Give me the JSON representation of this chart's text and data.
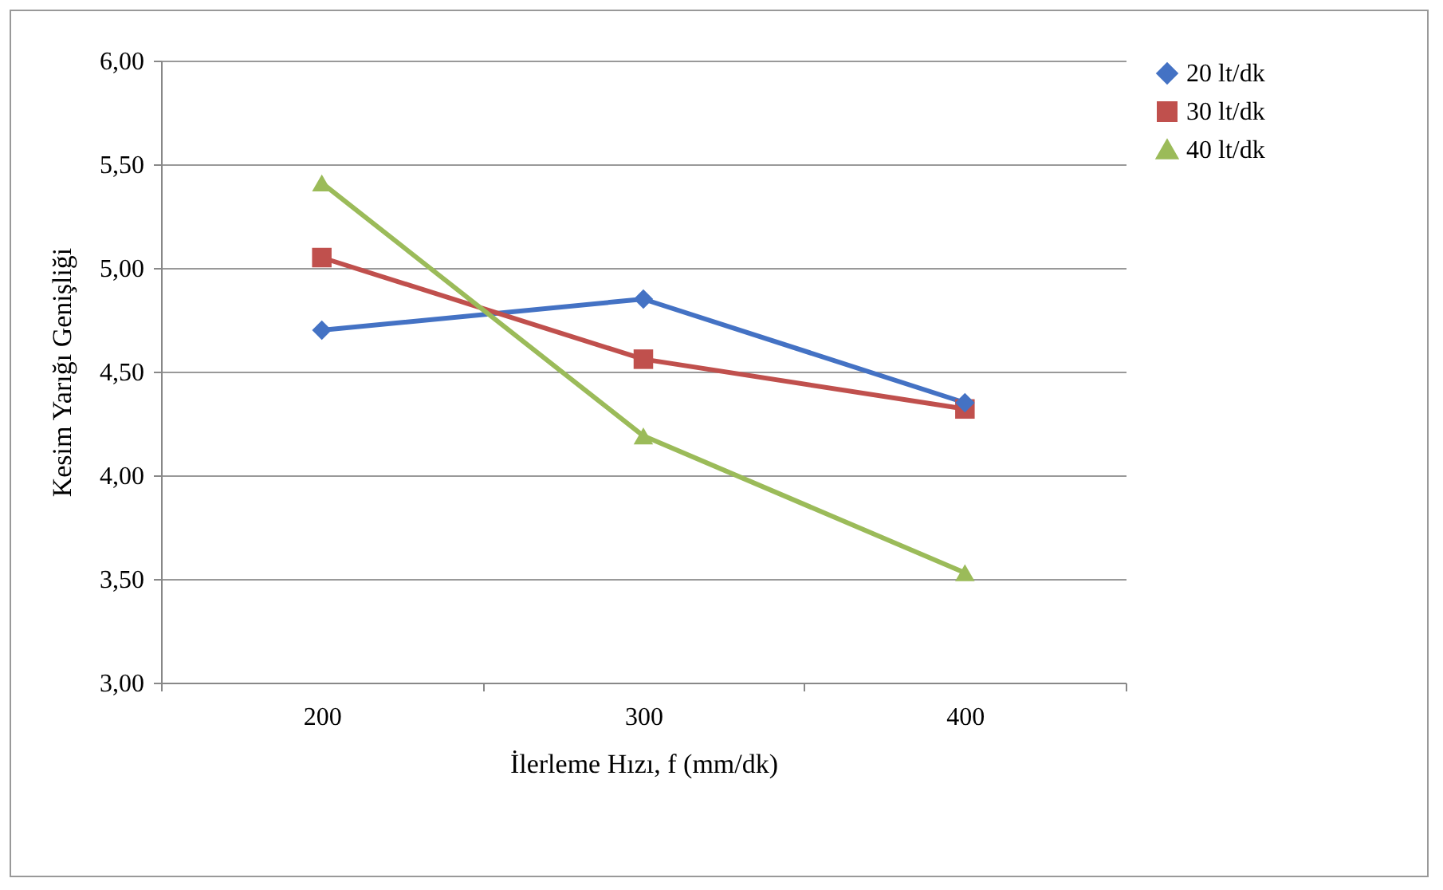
{
  "chart_data": {
    "type": "line",
    "xlabel": "İlerleme Hızı, f (mm/dk)",
    "ylabel": "Kesim Yarığı Genişliği",
    "categories": [
      "200",
      "300",
      "400"
    ],
    "series": [
      {
        "name": "20 lt/dk",
        "color": "#4472c4",
        "marker": "diamond",
        "values": [
          4.7,
          4.85,
          4.35
        ]
      },
      {
        "name": "30 lt/dk",
        "color": "#c0504d",
        "marker": "square",
        "values": [
          5.05,
          4.56,
          4.32
        ]
      },
      {
        "name": "40 lt/dk",
        "color": "#9bbb59",
        "marker": "triangle",
        "values": [
          5.41,
          4.19,
          3.53
        ]
      }
    ],
    "ylim": [
      3,
      6
    ],
    "yticks": [
      {
        "value": 3,
        "label": "3,00"
      },
      {
        "value": 3.5,
        "label": "3,50"
      },
      {
        "value": 4,
        "label": "4,00"
      },
      {
        "value": 4.5,
        "label": "4,50"
      },
      {
        "value": 5,
        "label": "5,00"
      },
      {
        "value": 5.5,
        "label": "5,50"
      },
      {
        "value": 6,
        "label": "6,00"
      }
    ],
    "grid": "y",
    "legend": "right",
    "line_style": "solid"
  }
}
